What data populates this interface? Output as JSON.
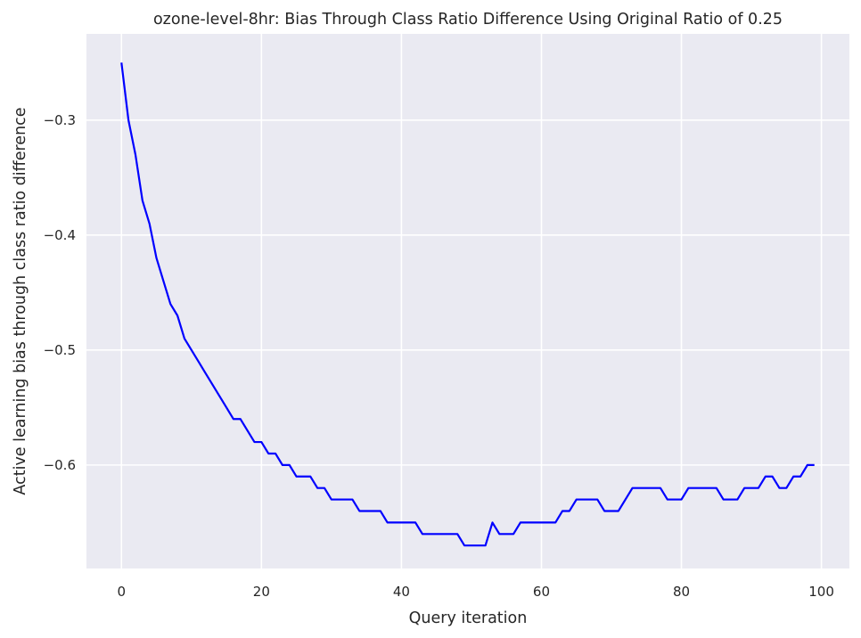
{
  "chart_data": {
    "type": "line",
    "title": "ozone-level-8hr: Bias Through Class Ratio Difference Using Original Ratio of 0.25",
    "xlabel": "Query iteration",
    "ylabel": "Active learning bias through class ratio difference",
    "xlim": [
      -5,
      104
    ],
    "ylim": [
      -0.69,
      -0.225
    ],
    "xticks": [
      0,
      20,
      40,
      60,
      80,
      100
    ],
    "xtick_labels": [
      "0",
      "20",
      "40",
      "60",
      "80",
      "100"
    ],
    "yticks": [
      -0.3,
      -0.4,
      -0.5,
      -0.6
    ],
    "ytick_labels": [
      "−0.3",
      "−0.4",
      "−0.5",
      "−0.6"
    ],
    "grid": true,
    "style": {
      "background": "#eaeaf2",
      "grid_color": "#ffffff",
      "line_color": "#0000ff"
    },
    "series": [
      {
        "x": [
          0,
          1,
          2,
          3,
          4,
          5,
          6,
          7,
          8,
          9,
          10,
          11,
          12,
          13,
          14,
          15,
          16,
          17,
          18,
          19,
          20,
          21,
          22,
          23,
          24,
          25,
          26,
          27,
          28,
          29,
          30,
          31,
          32,
          33,
          34,
          35,
          36,
          37,
          38,
          39,
          40,
          41,
          42,
          43,
          44,
          45,
          46,
          47,
          48,
          49,
          50,
          51,
          52,
          53,
          54,
          55,
          56,
          57,
          58,
          59,
          60,
          61,
          62,
          63,
          64,
          65,
          66,
          67,
          68,
          69,
          70,
          71,
          72,
          73,
          74,
          75,
          76,
          77,
          78,
          79,
          80,
          81,
          82,
          83,
          84,
          85,
          86,
          87,
          88,
          89,
          90,
          91,
          92,
          93,
          94,
          95,
          96,
          97,
          98,
          99
        ],
        "y": [
          -0.25,
          -0.3,
          -0.33,
          -0.37,
          -0.39,
          -0.42,
          -0.44,
          -0.46,
          -0.47,
          -0.49,
          -0.5,
          -0.51,
          -0.52,
          -0.53,
          -0.54,
          -0.55,
          -0.56,
          -0.56,
          -0.57,
          -0.58,
          -0.58,
          -0.59,
          -0.59,
          -0.6,
          -0.6,
          -0.61,
          -0.61,
          -0.61,
          -0.62,
          -0.62,
          -0.63,
          -0.63,
          -0.63,
          -0.63,
          -0.64,
          -0.64,
          -0.64,
          -0.64,
          -0.65,
          -0.65,
          -0.65,
          -0.65,
          -0.65,
          -0.66,
          -0.66,
          -0.66,
          -0.66,
          -0.66,
          -0.66,
          -0.67,
          -0.67,
          -0.67,
          -0.67,
          -0.65,
          -0.66,
          -0.66,
          -0.66,
          -0.65,
          -0.65,
          -0.65,
          -0.65,
          -0.65,
          -0.65,
          -0.64,
          -0.64,
          -0.63,
          -0.63,
          -0.63,
          -0.63,
          -0.64,
          -0.64,
          -0.64,
          -0.63,
          -0.62,
          -0.62,
          -0.62,
          -0.62,
          -0.62,
          -0.63,
          -0.63,
          -0.63,
          -0.62,
          -0.62,
          -0.62,
          -0.62,
          -0.62,
          -0.63,
          -0.63,
          -0.63,
          -0.62,
          -0.62,
          -0.62,
          -0.61,
          -0.61,
          -0.62,
          -0.62,
          -0.61,
          -0.61,
          -0.6,
          -0.6
        ]
      }
    ]
  }
}
